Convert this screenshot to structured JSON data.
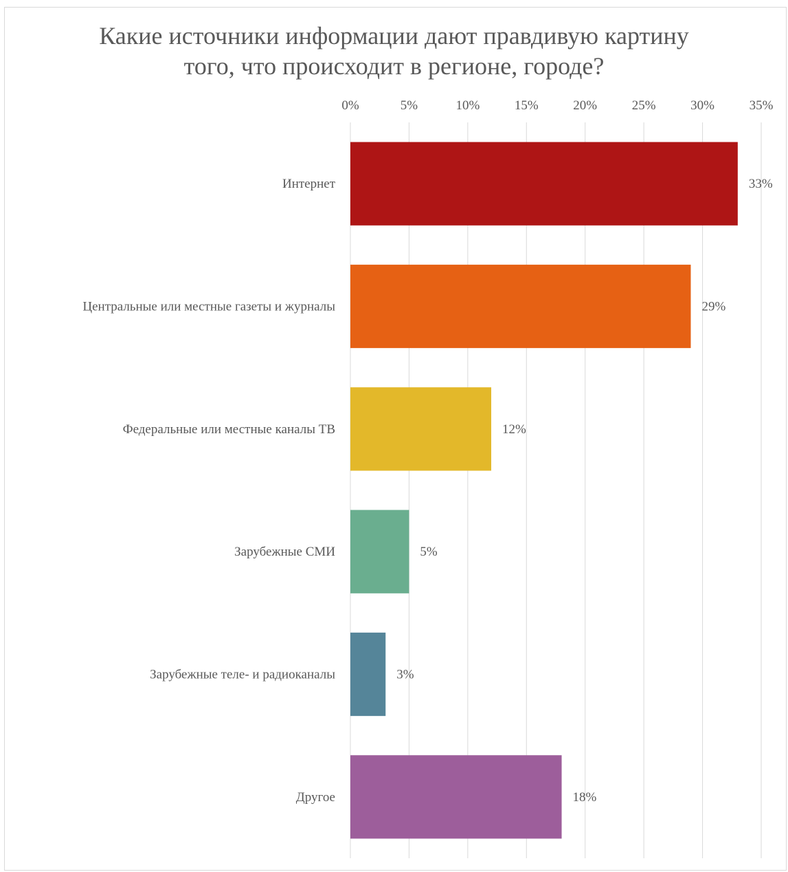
{
  "chart_data": {
    "type": "bar",
    "orientation": "horizontal",
    "title": "Какие источники информации дают правдивую картину того, что происходит в регионе, городе?",
    "title_lines": [
      "Какие источники информации дают правдивую картину",
      "того, что происходит в регионе, городе?"
    ],
    "categories": [
      "Интернет",
      "Центральные или местные газеты и журналы",
      "Федеральные или местные каналы ТВ",
      "Зарубежные СМИ",
      "Зарубежные теле- и радиоканалы",
      "Другое"
    ],
    "values": [
      33,
      29,
      12,
      5,
      3,
      18
    ],
    "value_labels": [
      "33%",
      "29%",
      "12%",
      "5%",
      "3%",
      "18%"
    ],
    "colors": [
      "#ae1515",
      "#e66114",
      "#e3b82a",
      "#6aae8f",
      "#558599",
      "#9d5e9b"
    ],
    "xlim": [
      0,
      35
    ],
    "xticks": [
      "0%",
      "5%",
      "10%",
      "15%",
      "20%",
      "25%",
      "30%",
      "35%"
    ],
    "xaxis_position": "top",
    "grid": true,
    "legend": "none"
  }
}
